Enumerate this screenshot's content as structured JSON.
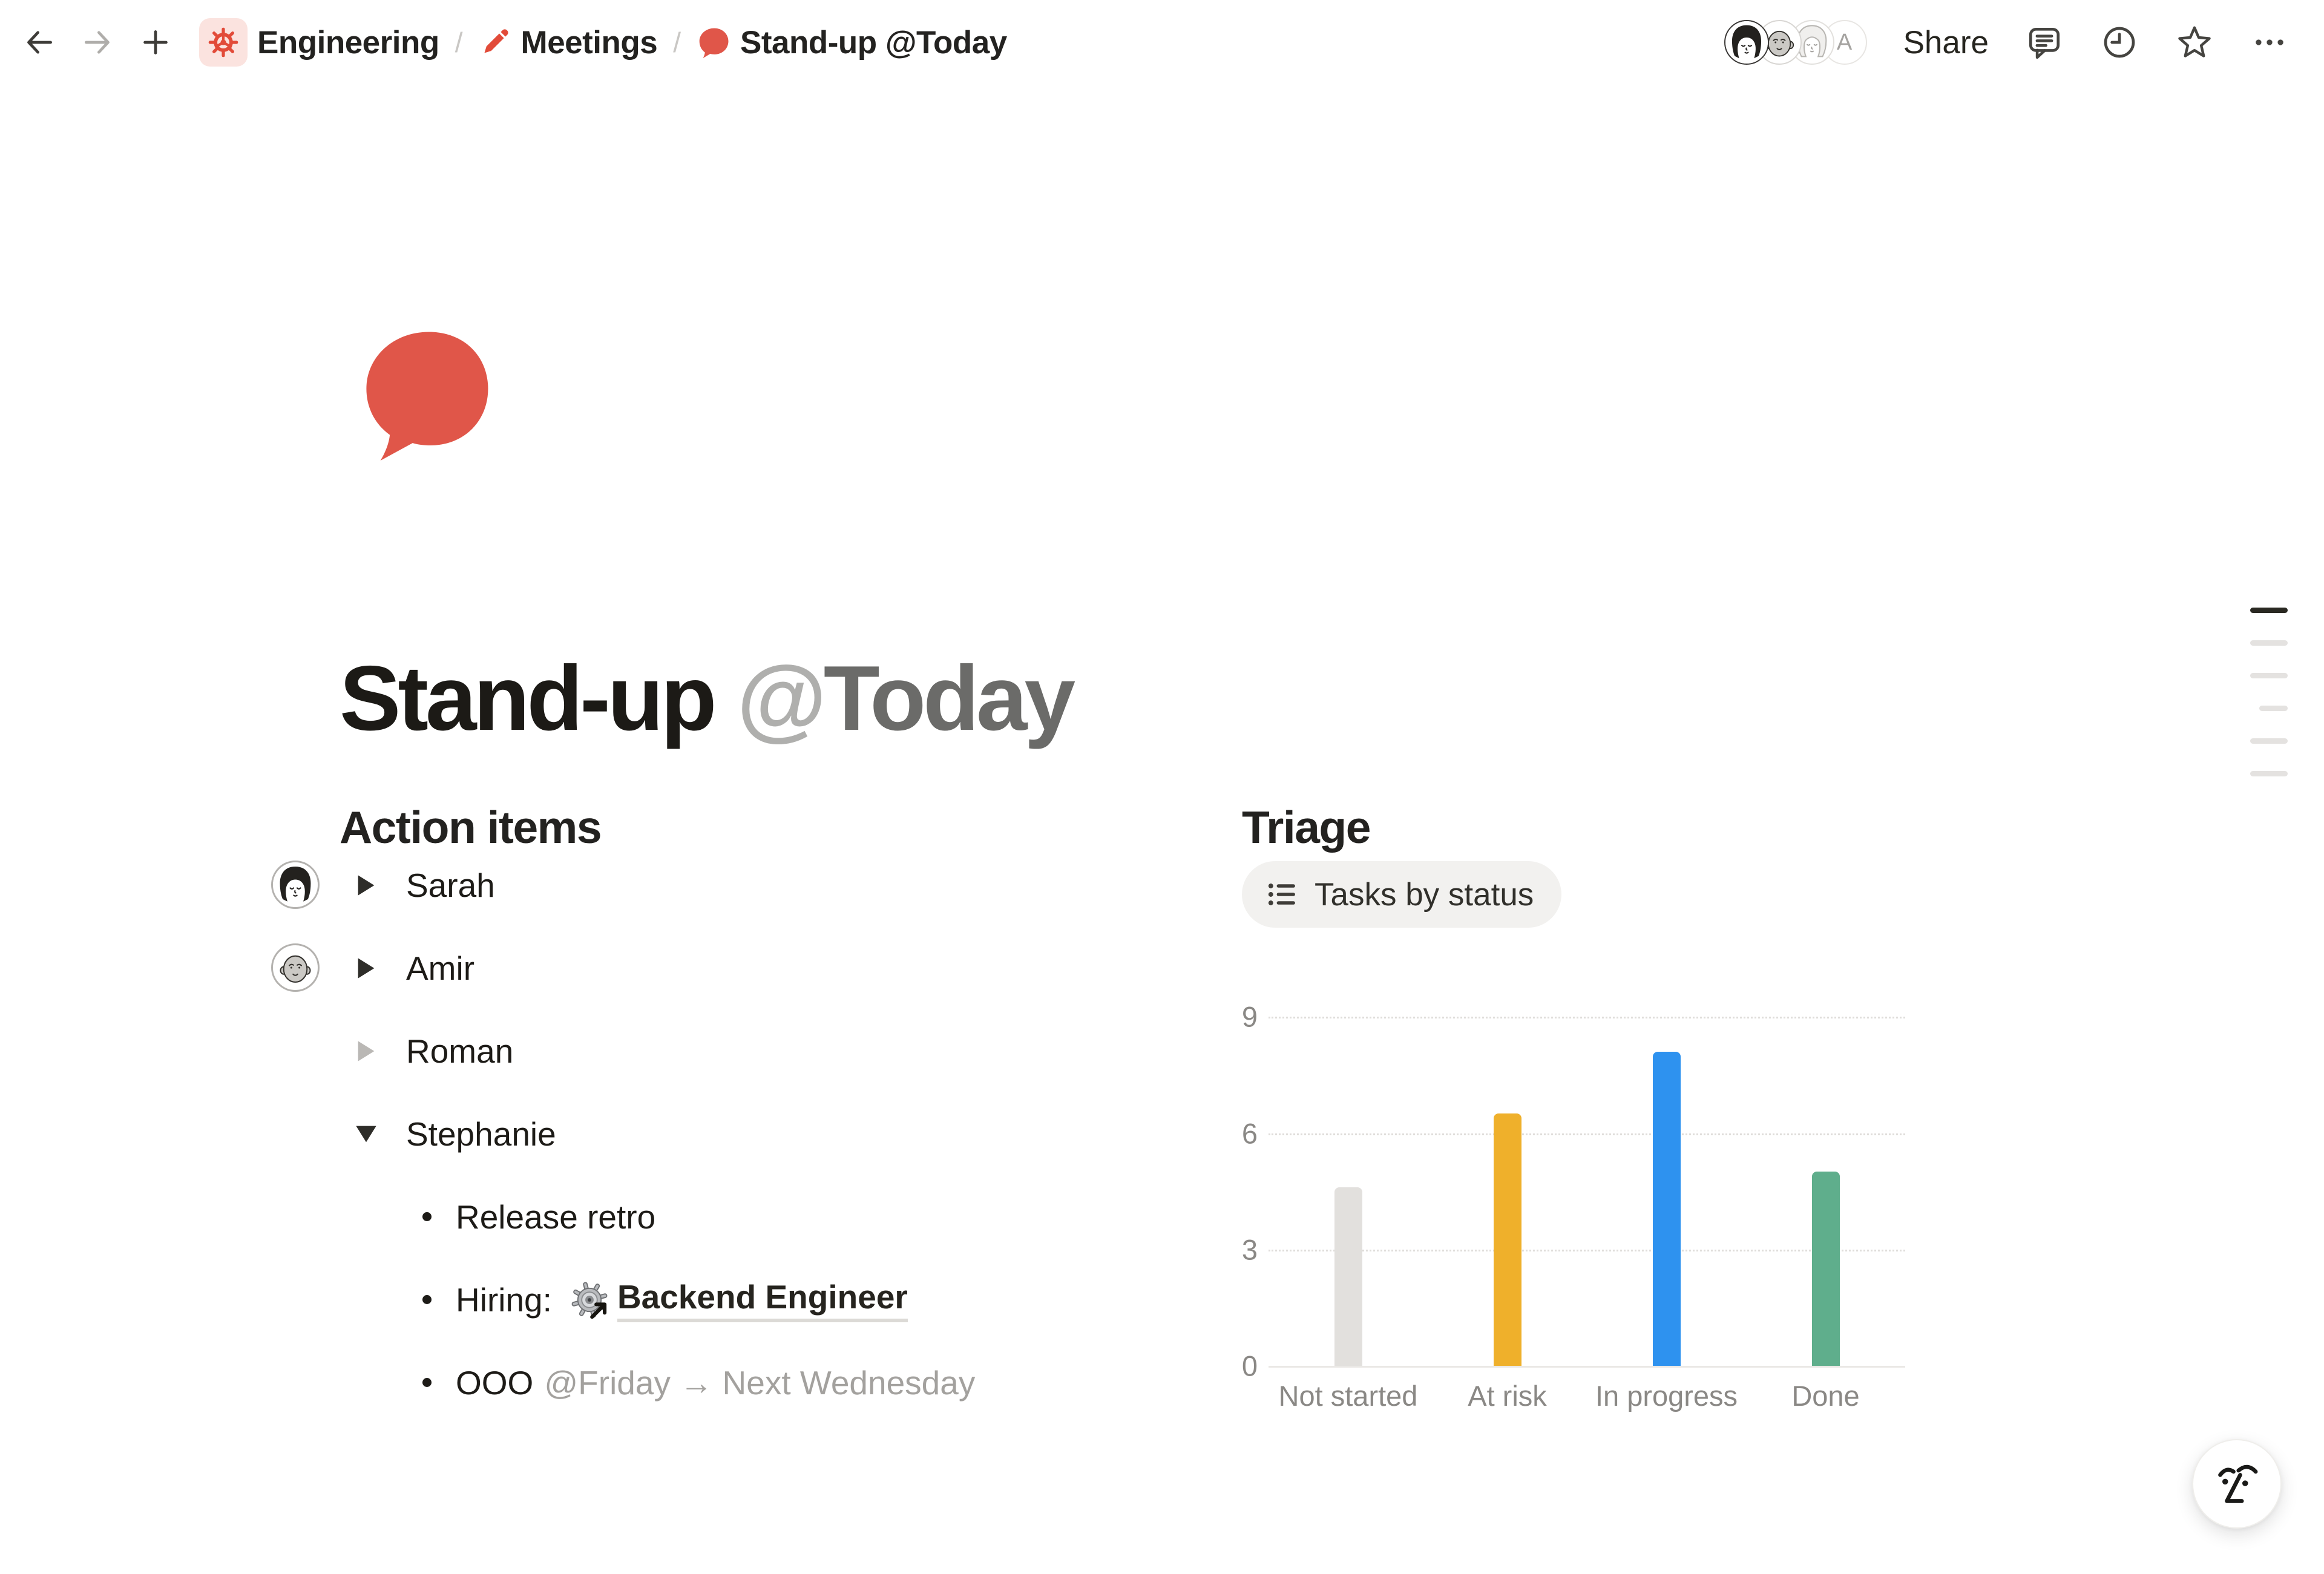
{
  "topbar": {
    "back_icon": "arrow-left-icon",
    "forward_icon": "arrow-right-icon",
    "new_page_icon": "plus-icon",
    "breadcrumb": {
      "separator": "/",
      "items": [
        {
          "label": "Engineering",
          "icon": "gear-icon",
          "icon_color": "#E24B39",
          "chip_bg": "#FBE3DF"
        },
        {
          "label": "Meetings",
          "icon": "pencil-icon",
          "icon_color": "#E24B39"
        },
        {
          "label": "Stand-up @Today",
          "icon": "speech-bubble-icon",
          "icon_color": "#E05649"
        }
      ]
    },
    "avatar_letter": "A",
    "share_label": "Share",
    "action_icons": [
      "comment-icon",
      "clock-icon",
      "star-icon",
      "ellipsis-icon"
    ]
  },
  "page": {
    "icon": "speech-bubble-icon",
    "icon_color": "#E05649",
    "title_main": "Stand-up",
    "title_at": "@",
    "title_word": "Today"
  },
  "left_column": {
    "heading": "Action items",
    "toggles": [
      {
        "label": "Sarah",
        "expanded": false,
        "muted": false,
        "margin_avatar": "woman-dark-hair"
      },
      {
        "label": "Amir",
        "expanded": false,
        "muted": false,
        "margin_avatar": "bald-man"
      },
      {
        "label": "Roman",
        "expanded": false,
        "muted": true,
        "margin_avatar": null
      },
      {
        "label": "Stephanie",
        "expanded": true,
        "muted": false,
        "margin_avatar": null
      }
    ],
    "sub_items": [
      {
        "text": "Release retro"
      },
      {
        "prefix": "Hiring:",
        "link_icon": "gear-emoji-with-link-arrow",
        "link_label": "Backend Engineer"
      },
      {
        "prefix": "OOO",
        "mention": "@Friday → Next Wednesday"
      }
    ]
  },
  "right_column": {
    "heading": "Triage",
    "chart_button_icon": "bulleted-list-icon",
    "chart_button_label": "Tasks by status"
  },
  "chart_data": {
    "type": "bar",
    "title": "Tasks by status",
    "categories": [
      "Not started",
      "At risk",
      "In progress",
      "Done"
    ],
    "values": [
      4.6,
      6.5,
      8.1,
      5.0
    ],
    "colors": [
      "#E2E0DD",
      "#EFB02B",
      "#2E92EF",
      "#5FAE8C"
    ],
    "yticks": [
      0,
      3,
      6,
      9
    ],
    "ylim": [
      0,
      9
    ],
    "xlabel": "",
    "ylabel": "",
    "grid": "dotted-horizontal",
    "legend": "none"
  },
  "misc": {
    "toc_lines": 6,
    "ai_button_icon": "notion-ai-face-icon",
    "accent_red": "#E05649",
    "text_dark": "#1D1B17",
    "text_gray": "#8A8885"
  }
}
